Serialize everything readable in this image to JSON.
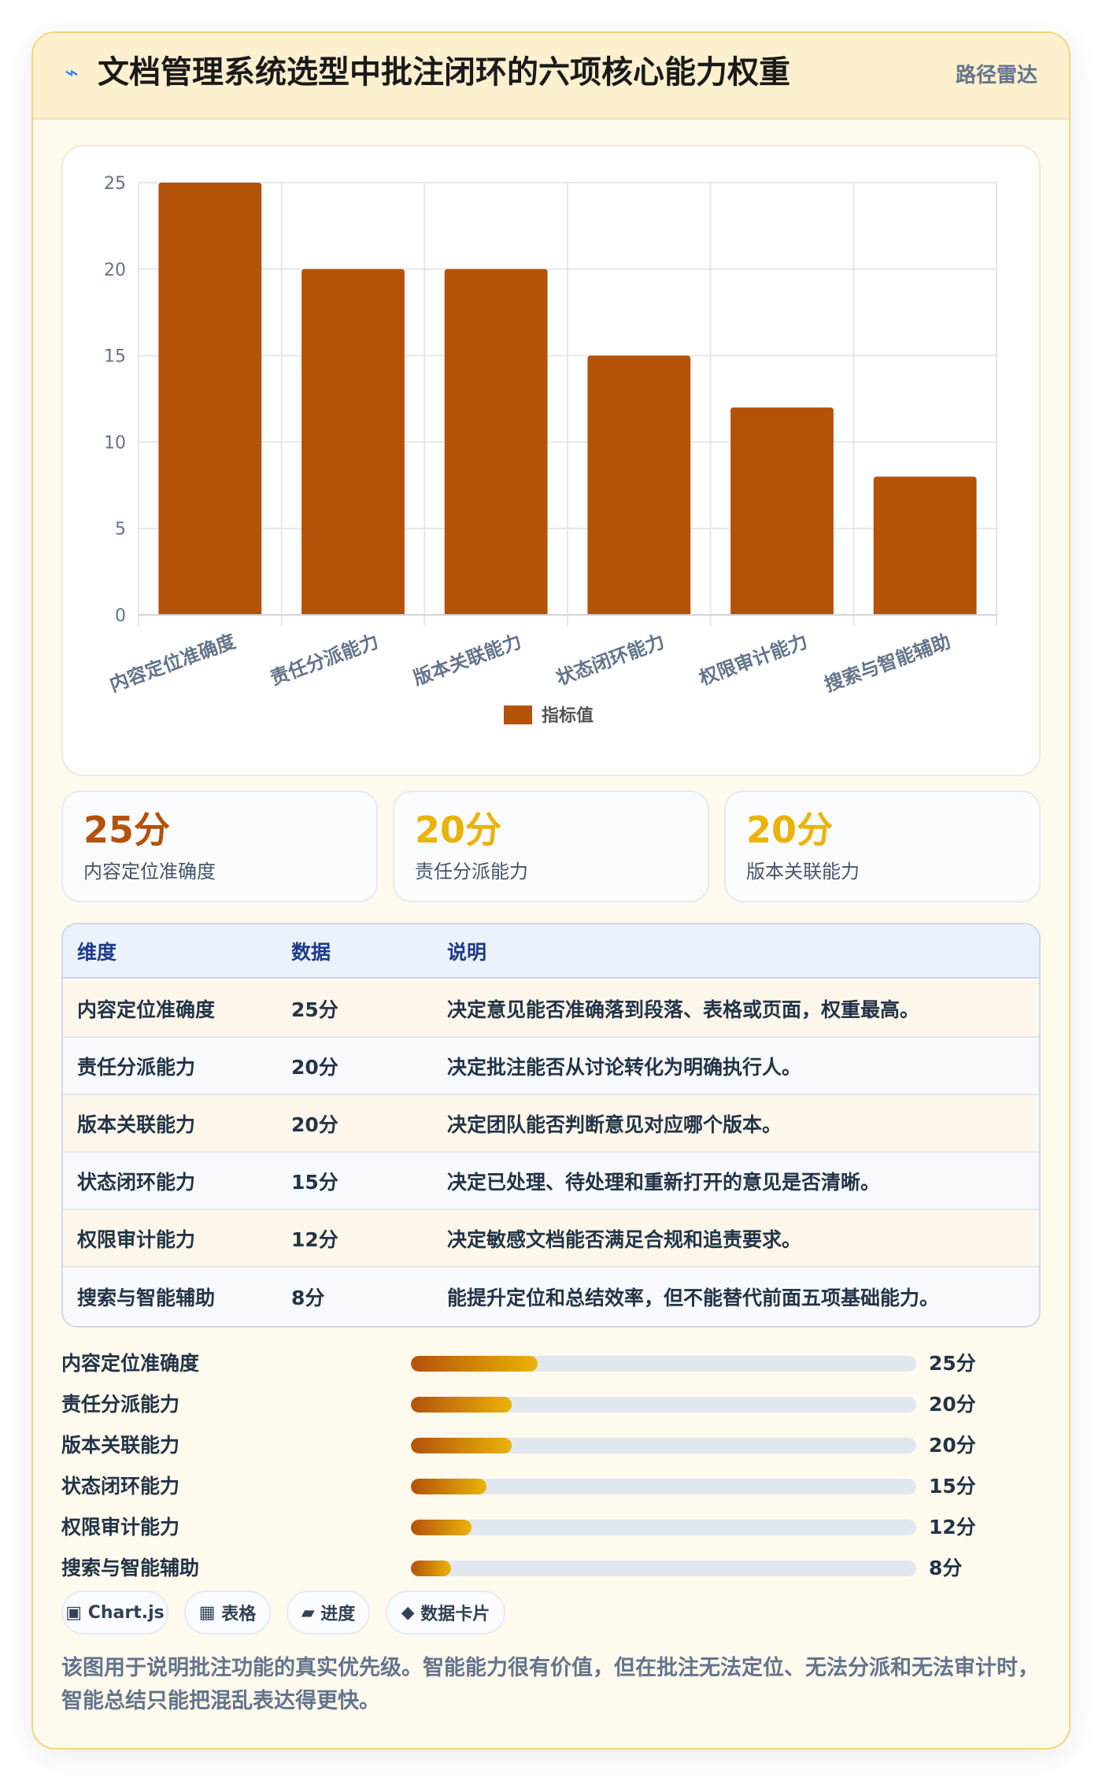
{
  "header": {
    "icon": "lightning-bolt-icon",
    "title": "文档管理系统选型中批注闭环的六项核心能力权重",
    "tag": "路径雷达"
  },
  "chart_data": {
    "type": "bar",
    "categories": [
      "内容定位准确度",
      "责任分派能力",
      "版本关联能力",
      "状态闭环能力",
      "权限审计能力",
      "搜索与智能辅助"
    ],
    "series": [
      {
        "name": "指标值",
        "values": [
          25,
          20,
          20,
          15,
          12,
          8
        ]
      }
    ],
    "ylim": [
      0,
      25
    ],
    "yticks": [
      0,
      5,
      10,
      15,
      20,
      25
    ],
    "grid": true,
    "legend": "bottom",
    "bar_color": "#b4520a"
  },
  "stats": [
    {
      "value": "25分",
      "label": "内容定位准确度",
      "color": "#b4520a"
    },
    {
      "value": "20分",
      "label": "责任分派能力",
      "color": "#eab308"
    },
    {
      "value": "20分",
      "label": "版本关联能力",
      "color": "#eab308"
    }
  ],
  "table": {
    "headers": [
      "维度",
      "数据",
      "说明"
    ],
    "rows": [
      [
        "内容定位准确度",
        "25分",
        "决定意见能否准确落到段落、表格或页面，权重最高。"
      ],
      [
        "责任分派能力",
        "20分",
        "决定批注能否从讨论转化为明确执行人。"
      ],
      [
        "版本关联能力",
        "20分",
        "决定团队能否判断意见对应哪个版本。"
      ],
      [
        "状态闭环能力",
        "15分",
        "决定已处理、待处理和重新打开的意见是否清晰。"
      ],
      [
        "权限审计能力",
        "12分",
        "决定敏感文档能否满足合规和追责要求。"
      ],
      [
        "搜索与智能辅助",
        "8分",
        "能提升定位和总结效率，但不能替代前面五项基础能力。"
      ]
    ]
  },
  "progress": [
    {
      "label": "内容定位准确度",
      "value": 25,
      "text": "25分"
    },
    {
      "label": "责任分派能力",
      "value": 20,
      "text": "20分"
    },
    {
      "label": "版本关联能力",
      "value": 20,
      "text": "20分"
    },
    {
      "label": "状态闭环能力",
      "value": 15,
      "text": "15分"
    },
    {
      "label": "权限审计能力",
      "value": 12,
      "text": "12分"
    },
    {
      "label": "搜索与智能辅助",
      "value": 8,
      "text": "8分"
    }
  ],
  "progress_max": 100,
  "chips": [
    {
      "icon": "chart-icon",
      "glyph": "▣",
      "label": "Chart.js"
    },
    {
      "icon": "table-icon",
      "glyph": "▦",
      "label": "表格"
    },
    {
      "icon": "progress-icon",
      "glyph": "▰",
      "label": "进度"
    },
    {
      "icon": "diamond-icon",
      "glyph": "◆",
      "label": "数据卡片"
    }
  ],
  "note": "该图用于说明批注功能的真实优先级。智能能力很有价值，但在批注无法定位、无法分派和无法审计时，智能总结只能把混乱表达得更快。"
}
